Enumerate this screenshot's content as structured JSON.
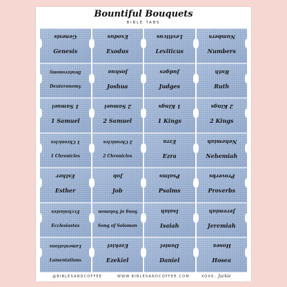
{
  "sheet": {
    "title": "Bountiful Bouquets",
    "subtitle": "BIBLE TABS",
    "footer": {
      "handle": "@BIBLESANDCOFFEE",
      "website": "WWW.BIBLESANDCOFFEE.COM",
      "signoff": "XOXO,",
      "signature": "Jackie"
    }
  },
  "tabs": [
    {
      "name": "Genesis"
    },
    {
      "name": "Exodus"
    },
    {
      "name": "Leviticus"
    },
    {
      "name": "Numbers"
    },
    {
      "name": "Deuteronomy"
    },
    {
      "name": "Joshua"
    },
    {
      "name": "Judges"
    },
    {
      "name": "Ruth"
    },
    {
      "name": "1 Samuel"
    },
    {
      "name": "2 Samuel"
    },
    {
      "name": "1 Kings"
    },
    {
      "name": "2 Kings"
    },
    {
      "name": "1 Chronicles"
    },
    {
      "name": "2 Chronicles"
    },
    {
      "name": "Ezra"
    },
    {
      "name": "Nehemiah"
    },
    {
      "name": "Esther"
    },
    {
      "name": "Job"
    },
    {
      "name": "Psalms"
    },
    {
      "name": "Proverbs"
    },
    {
      "name": "Ecclesiastes"
    },
    {
      "name": "Song of Solomon"
    },
    {
      "name": "Isaiah"
    },
    {
      "name": "Jeremiah"
    },
    {
      "name": "Lamentations"
    },
    {
      "name": "Ezekiel"
    },
    {
      "name": "Daniel"
    },
    {
      "name": "Hosea"
    }
  ],
  "colors": {
    "background": "#f6d7d2",
    "tab_fabric": "#9db3d3",
    "text": "#141414"
  }
}
